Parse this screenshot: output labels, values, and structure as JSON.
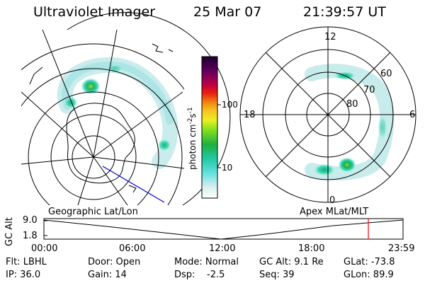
{
  "header": {
    "title": "Ultraviolet Imager",
    "date": "25 Mar 07",
    "time": "21:39:57 UT"
  },
  "left_panel": {
    "caption": "Geographic Lat/Lon"
  },
  "right_panel": {
    "caption": "Apex MLat/MLT",
    "mlt_labels": [
      "12",
      "6",
      "0",
      "18"
    ],
    "lat_labels": [
      "60",
      "70",
      "80"
    ]
  },
  "colorbar": {
    "label": "photon cm",
    "label_exp1": "-2",
    "label_s": "s",
    "label_exp2": "-1",
    "ticks": [
      "100",
      "10"
    ]
  },
  "timeline": {
    "ylabel": "GC Alt",
    "y_ticks": [
      "9.0",
      "1.8"
    ],
    "x_ticks": [
      "00:00",
      "06:00",
      "12:00",
      "18:00",
      "23:59"
    ],
    "current_marker_time": "21:39:57"
  },
  "info": {
    "flt": "Flt: LBHL",
    "ip": "IP: 36.0",
    "door": "Door: Open",
    "gain": "Gain: 14",
    "mode": "Mode: Normal",
    "dsp_label": "Dsp:",
    "dsp_value": "-2.5",
    "gcalt": "GC Alt: 9.1 Re",
    "seq": "Seq: 39",
    "glat": "GLat: -73.8",
    "glon": "GLon: 89.9"
  },
  "colors": {
    "marker": "#ff0000",
    "meridian": "#0000cc"
  }
}
